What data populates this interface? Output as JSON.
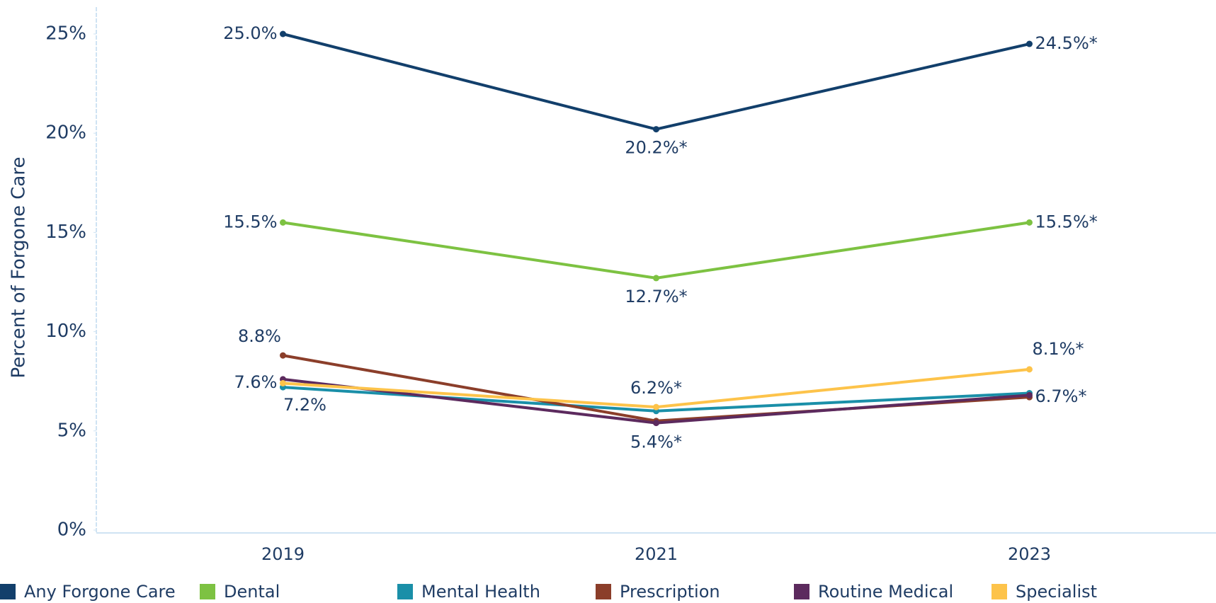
{
  "chart_data": {
    "type": "line",
    "y_label": "Percent of Forgone Care",
    "categories": [
      "2019",
      "2021",
      "2023"
    ],
    "ylim": [
      0,
      25
    ],
    "yticks": [
      {
        "value": 0,
        "label": "0%"
      },
      {
        "value": 5,
        "label": "5%"
      },
      {
        "value": 10,
        "label": "10%"
      },
      {
        "value": 15,
        "label": "15%"
      },
      {
        "value": 20,
        "label": "20%"
      },
      {
        "value": 25,
        "label": "25%"
      }
    ],
    "legend": "bottom",
    "series": [
      {
        "name": "Any Forgone Care",
        "color": "#123f6b",
        "values": [
          25.0,
          20.2,
          24.5
        ],
        "value_labels": [
          "25.0%",
          "20.2%*",
          "24.5%*"
        ]
      },
      {
        "name": "Dental",
        "color": "#7dc242",
        "values": [
          15.5,
          12.7,
          15.5
        ],
        "value_labels": [
          "15.5%",
          "12.7%*",
          "15.5%*"
        ]
      },
      {
        "name": "Mental Health",
        "color": "#1a8fa8",
        "values": [
          7.2,
          6.0,
          6.9
        ],
        "value_labels": [
          "7.2%",
          null,
          null
        ]
      },
      {
        "name": "Prescription",
        "color": "#8b3e2a",
        "values": [
          8.8,
          5.5,
          6.7
        ],
        "value_labels": [
          "8.8%",
          null,
          "6.7%*"
        ]
      },
      {
        "name": "Routine Medical",
        "color": "#5c2a5e",
        "values": [
          7.6,
          5.4,
          6.8
        ],
        "value_labels": [
          "7.6%",
          "5.4%*",
          null
        ]
      },
      {
        "name": "Specialist",
        "color": "#fdc34a",
        "values": [
          7.4,
          6.2,
          8.1
        ],
        "value_labels": [
          null,
          "6.2%*",
          "8.1%*"
        ]
      }
    ]
  }
}
